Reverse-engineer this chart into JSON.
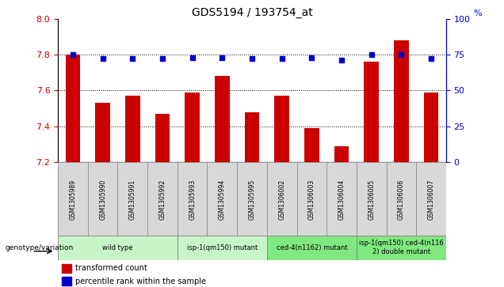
{
  "title": "GDS5194 / 193754_at",
  "samples": [
    "GSM1305989",
    "GSM1305990",
    "GSM1305991",
    "GSM1305992",
    "GSM1305993",
    "GSM1305994",
    "GSM1305995",
    "GSM1306002",
    "GSM1306003",
    "GSM1306004",
    "GSM1306005",
    "GSM1306006",
    "GSM1306007"
  ],
  "transformed_count": [
    7.8,
    7.53,
    7.57,
    7.47,
    7.59,
    7.68,
    7.48,
    7.57,
    7.39,
    7.29,
    7.76,
    7.88,
    7.59
  ],
  "percentile_rank": [
    75,
    72,
    72,
    72,
    73,
    73,
    72,
    72,
    73,
    71,
    75,
    75,
    72
  ],
  "ylim_left": [
    7.2,
    8.0
  ],
  "ylim_right": [
    0,
    100
  ],
  "yticks_left": [
    7.2,
    7.4,
    7.6,
    7.8,
    8.0
  ],
  "yticks_right": [
    0,
    25,
    50,
    75,
    100
  ],
  "groups": [
    {
      "label": "wild type",
      "start": 0,
      "end": 3,
      "color": "#c8f5c8"
    },
    {
      "label": "isp-1(qm150) mutant",
      "start": 4,
      "end": 6,
      "color": "#c8f5c8"
    },
    {
      "label": "ced-4(n1162) mutant",
      "start": 7,
      "end": 9,
      "color": "#80e880"
    },
    {
      "label": "isp-1(qm150) ced-4(n116\n2) double mutant",
      "start": 10,
      "end": 12,
      "color": "#80e880"
    }
  ],
  "bar_color": "#cc0000",
  "percentile_color": "#0000cc",
  "tick_label_color_left": "#cc0000",
  "tick_label_color_right": "#0000cc",
  "sample_cell_color": "#d8d8d8",
  "sample_cell_border": "#888888"
}
